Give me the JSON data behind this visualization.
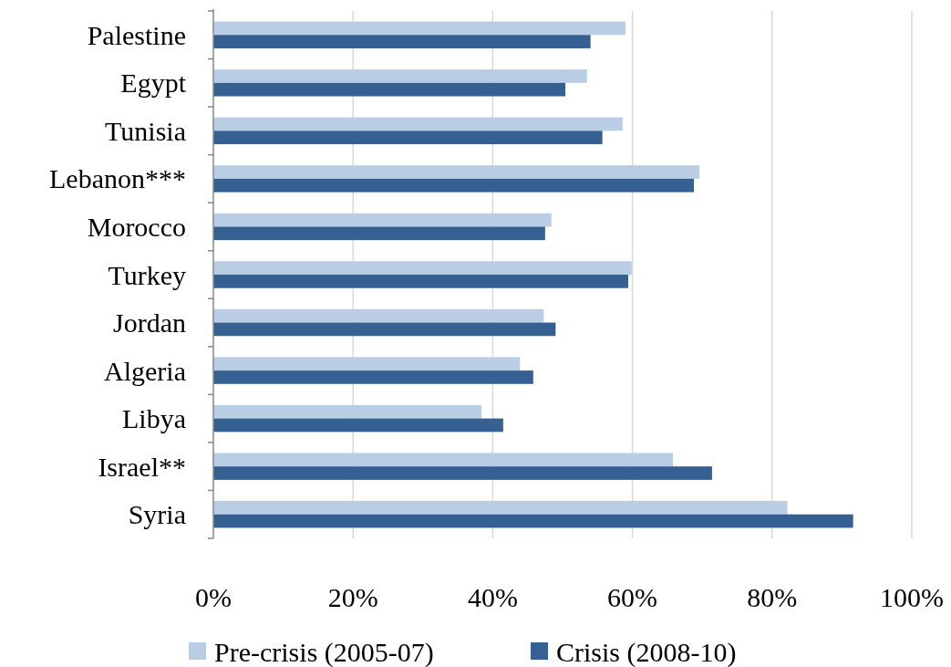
{
  "chart_data": {
    "type": "bar",
    "orientation": "horizontal",
    "categories": [
      "Palestine",
      "Egypt",
      "Tunisia",
      "Lebanon***",
      "Morocco",
      "Turkey",
      "Jordan",
      "Algeria",
      "Libya",
      "Israel**",
      "Syria"
    ],
    "series": [
      {
        "name": "Pre-crisis (2005-07)",
        "color": "#b9cde5",
        "values": [
          59.0,
          53.5,
          58.6,
          69.6,
          48.4,
          59.9,
          47.3,
          43.9,
          38.4,
          65.8,
          82.2
        ]
      },
      {
        "name": "Crisis (2008-10)",
        "color": "#376092",
        "values": [
          54.0,
          50.4,
          55.7,
          68.8,
          47.5,
          59.4,
          49.0,
          45.8,
          41.5,
          71.4,
          91.6
        ]
      }
    ],
    "xlim": [
      0,
      100
    ],
    "xticks": [
      {
        "value": 0,
        "label": "0%"
      },
      {
        "value": 20,
        "label": "20%"
      },
      {
        "value": 40,
        "label": "40%"
      },
      {
        "value": 60,
        "label": "60%"
      },
      {
        "value": 80,
        "label": "80%"
      },
      {
        "value": 100,
        "label": "100%"
      }
    ],
    "grid": "x",
    "legend": "bottom"
  }
}
